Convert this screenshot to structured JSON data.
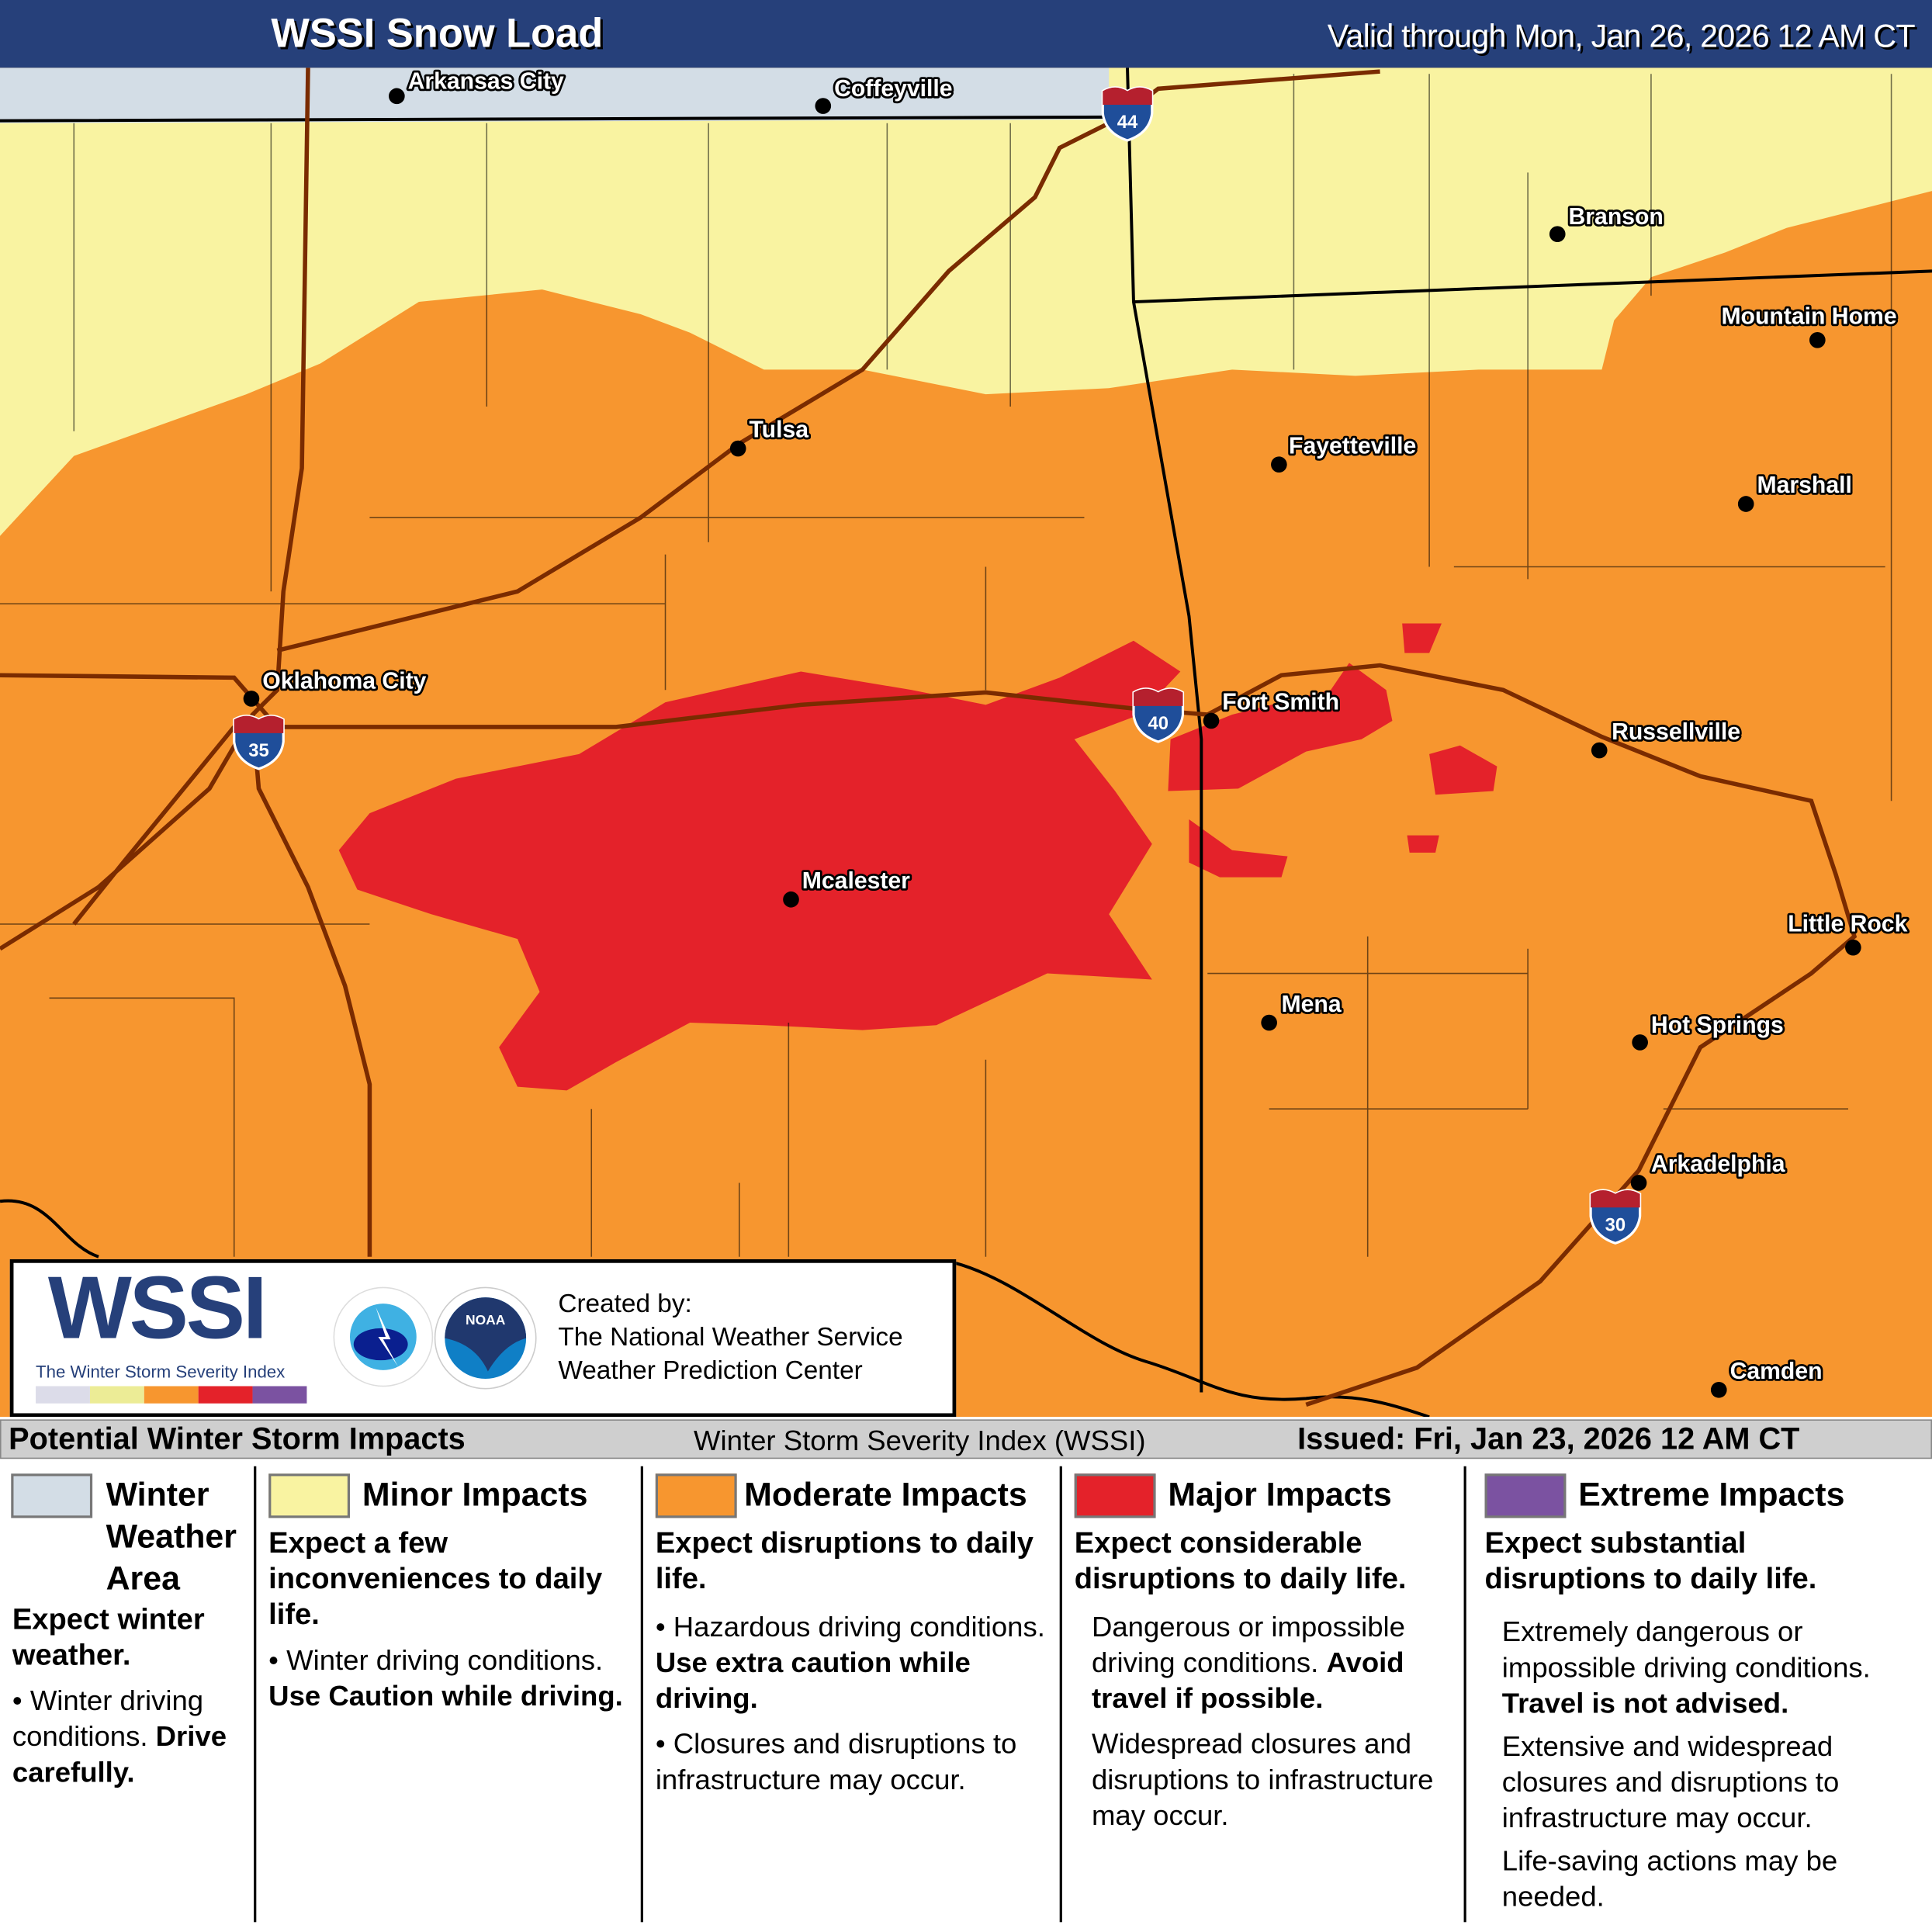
{
  "header": {
    "title": "WSSI Snow Load",
    "valid": "Valid through Mon, Jan 26, 2026 12 AM CT"
  },
  "cities": [
    "Arkansas City",
    "Coffeyville",
    "Branson",
    "Mountain Home",
    "Tulsa",
    "Fayetteville",
    "Marshall",
    "Oklahoma City",
    "Fort Smith",
    "Russellville",
    "Mcalester",
    "Little Rock",
    "Mena",
    "Hot Springs",
    "Arkadelphia",
    "Camden"
  ],
  "interstates": [
    "44",
    "35",
    "40",
    "30"
  ],
  "colors": {
    "winter_weather_area": "#d3dde6",
    "minor": "#f9f3a1",
    "moderate": "#f7962f",
    "major": "#e4222a",
    "extreme": "#7b52a1",
    "header": "#26407a",
    "roads": "#7a2b00"
  },
  "logo": {
    "wssi": "WSSI",
    "subtitle": "The Winter Storm Severity Index",
    "created_by": "Created by:",
    "org1": "The National Weather Service",
    "org2": "Weather Prediction Center"
  },
  "legend": {
    "title": "Potential Winter Storm Impacts",
    "center": "Winter Storm Severity Index (WSSI)",
    "issued": "Issued: Fri, Jan 23, 2026 12 AM CT",
    "winter": {
      "name": "Winter Weather Area",
      "l1": "Winter",
      "l2": "Weather",
      "l3": "Area",
      "expect": "Expect winter weather.",
      "b1": "Winter driving conditions.",
      "b1b": "Drive carefully."
    },
    "minor": {
      "name": "Minor Impacts",
      "expect": "Expect a few inconveniences to daily life.",
      "b1": "Winter driving conditions.",
      "b1b": "Use Caution while driving."
    },
    "moderate": {
      "name": "Moderate Impacts",
      "expect": "Expect disruptions to daily life.",
      "b1": "Hazardous driving conditions.",
      "b1b": "Use extra caution while driving.",
      "b2": "Closures and disruptions to infrastructure may occur."
    },
    "major": {
      "name": "Major Impacts",
      "expect": "Expect considerable disruptions to daily life.",
      "p1": "Dangerous or impossible driving conditions.",
      "p1b": "Avoid travel if possible.",
      "p2": "Widespread closures and disruptions to infrastructure may occur."
    },
    "extreme": {
      "name": "Extreme Impacts",
      "expect": "Expect substantial disruptions to daily life.",
      "p1": "Extremely dangerous or impossible driving conditions.",
      "p1b": "Travel is not advised.",
      "p2": "Extensive and widespread closures and disruptions to infrastructure may occur.",
      "p3": "Life-saving actions may be needed."
    }
  }
}
